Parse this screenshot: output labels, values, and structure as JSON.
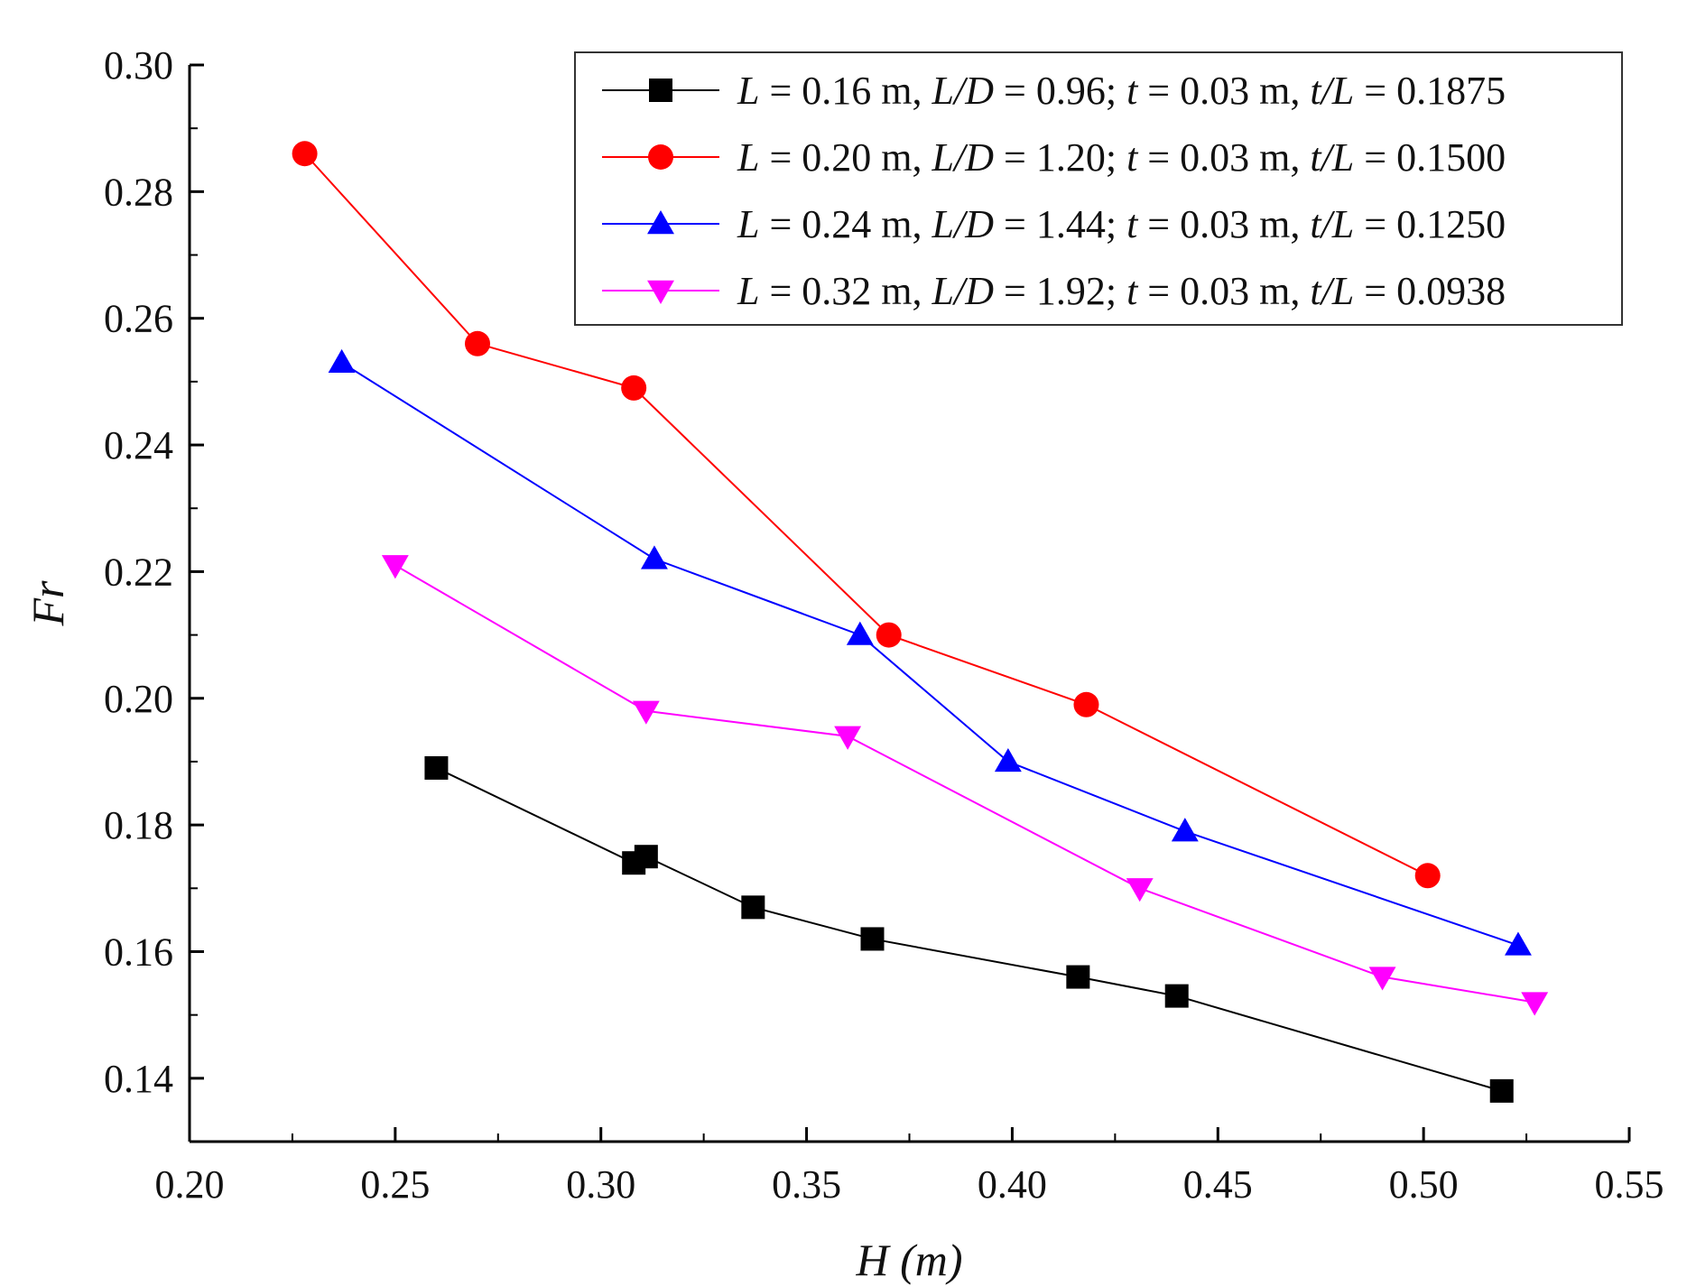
{
  "chart_data": {
    "type": "line",
    "title": "",
    "xlabel": "H (m)",
    "ylabel": "Fr",
    "xlim": [
      0.2,
      0.55
    ],
    "ylim": [
      0.13,
      0.3
    ],
    "x_ticks": [
      "0.20",
      "0.25",
      "0.30",
      "0.35",
      "0.40",
      "0.45",
      "0.50",
      "0.55"
    ],
    "y_ticks": [
      "0.14",
      "0.16",
      "0.18",
      "0.20",
      "0.22",
      "0.24",
      "0.26",
      "0.28",
      "0.30"
    ],
    "legend_position": "top-right",
    "series": [
      {
        "name": "L = 0.16 m, L/D = 0.96; t = 0.03 m, t/L = 0.1875",
        "legend": [
          {
            "text": "L",
            "italic": true
          },
          {
            "text": " = 0.16 m, ",
            "italic": false
          },
          {
            "text": "L/D",
            "italic": true
          },
          {
            "text": " = 0.96; ",
            "italic": false
          },
          {
            "text": "t",
            "italic": true
          },
          {
            "text": " = 0.03 m, ",
            "italic": false
          },
          {
            "text": "t/L",
            "italic": true
          },
          {
            "text": " = 0.1875",
            "italic": false
          }
        ],
        "color": "#000000",
        "marker": "square",
        "x": [
          0.26,
          0.308,
          0.311,
          0.337,
          0.366,
          0.416,
          0.44,
          0.519
        ],
        "y": [
          0.189,
          0.174,
          0.175,
          0.167,
          0.162,
          0.156,
          0.153,
          0.138
        ]
      },
      {
        "name": "L = 0.20 m, L/D = 1.20; t = 0.03 m, t/L = 0.1500",
        "legend": [
          {
            "text": "L",
            "italic": true
          },
          {
            "text": " = 0.20 m, ",
            "italic": false
          },
          {
            "text": "L/D",
            "italic": true
          },
          {
            "text": " = 1.20; ",
            "italic": false
          },
          {
            "text": "t",
            "italic": true
          },
          {
            "text": " = 0.03 m, ",
            "italic": false
          },
          {
            "text": "t/L",
            "italic": true
          },
          {
            "text": " = 0.1500",
            "italic": false
          }
        ],
        "color": "#ff0000",
        "marker": "circle",
        "x": [
          0.228,
          0.27,
          0.308,
          0.37,
          0.418,
          0.501
        ],
        "y": [
          0.286,
          0.256,
          0.249,
          0.21,
          0.199,
          0.172
        ]
      },
      {
        "name": "L = 0.24 m, L/D = 1.44; t = 0.03 m, t/L = 0.1250",
        "legend": [
          {
            "text": "L",
            "italic": true
          },
          {
            "text": " = 0.24 m, ",
            "italic": false
          },
          {
            "text": "L/D",
            "italic": true
          },
          {
            "text": " = 1.44; ",
            "italic": false
          },
          {
            "text": "t",
            "italic": true
          },
          {
            "text": " = 0.03 m, ",
            "italic": false
          },
          {
            "text": "t/L",
            "italic": true
          },
          {
            "text": " = 0.1250",
            "italic": false
          }
        ],
        "color": "#0000ff",
        "marker": "triangle-up",
        "x": [
          0.237,
          0.313,
          0.363,
          0.399,
          0.442,
          0.523
        ],
        "y": [
          0.253,
          0.222,
          0.21,
          0.19,
          0.179,
          0.161
        ]
      },
      {
        "name": "L = 0.32 m, L/D = 1.92; t = 0.03 m, t/L = 0.0938",
        "legend": [
          {
            "text": "L",
            "italic": true
          },
          {
            "text": " = 0.32 m, ",
            "italic": false
          },
          {
            "text": "L/D",
            "italic": true
          },
          {
            "text": " = 1.92; ",
            "italic": false
          },
          {
            "text": "t",
            "italic": true
          },
          {
            "text": " = 0.03 m, ",
            "italic": false
          },
          {
            "text": "t/L",
            "italic": true
          },
          {
            "text": " = 0.0938",
            "italic": false
          }
        ],
        "color": "#ff00ff",
        "marker": "triangle-down",
        "x": [
          0.25,
          0.311,
          0.36,
          0.431,
          0.49,
          0.527
        ],
        "y": [
          0.221,
          0.198,
          0.194,
          0.17,
          0.156,
          0.152
        ]
      }
    ]
  }
}
